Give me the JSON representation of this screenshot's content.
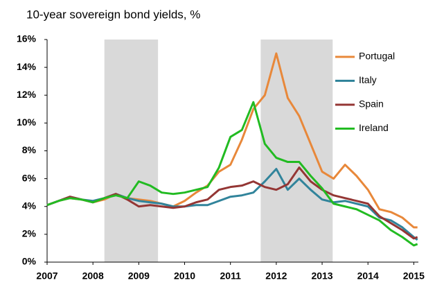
{
  "chart_data": {
    "type": "line",
    "title": "10-year sovereign bond yields, %",
    "x": [
      2007,
      2007.25,
      2007.5,
      2007.75,
      2008,
      2008.25,
      2008.5,
      2008.75,
      2009,
      2009.25,
      2009.5,
      2009.75,
      2010,
      2010.25,
      2010.5,
      2010.75,
      2011,
      2011.25,
      2011.5,
      2011.75,
      2012,
      2012.25,
      2012.5,
      2012.75,
      2013,
      2013.25,
      2013.5,
      2013.75,
      2014,
      2014.25,
      2014.5,
      2014.75,
      2015,
      2015.08
    ],
    "series": [
      {
        "name": "Portugal",
        "color": "#e8883a",
        "values": [
          4.1,
          4.4,
          4.6,
          4.5,
          4.3,
          4.5,
          4.9,
          4.6,
          4.5,
          4.4,
          4.2,
          4.0,
          4.4,
          5.0,
          5.5,
          6.5,
          7.0,
          8.8,
          11.0,
          12.0,
          15,
          11.8,
          10.5,
          8.5,
          6.5,
          6.0,
          7.0,
          6.2,
          5.2,
          3.8,
          3.6,
          3.2,
          2.5,
          2.5
        ]
      },
      {
        "name": "Italy",
        "color": "#31849b",
        "values": [
          4.1,
          4.4,
          4.7,
          4.5,
          4.4,
          4.6,
          4.9,
          4.6,
          4.4,
          4.3,
          4.2,
          4.0,
          4.0,
          4.1,
          4.1,
          4.4,
          4.7,
          4.8,
          5.0,
          5.8,
          6.7,
          5.2,
          6.0,
          5.2,
          4.5,
          4.3,
          4.4,
          4.2,
          4.0,
          3.2,
          3.0,
          2.5,
          1.8,
          1.6
        ]
      },
      {
        "name": "Spain",
        "color": "#943634",
        "values": [
          4.1,
          4.4,
          4.7,
          4.5,
          4.3,
          4.6,
          4.9,
          4.5,
          4.0,
          4.1,
          4.0,
          3.9,
          4.0,
          4.3,
          4.5,
          5.2,
          5.4,
          5.5,
          5.8,
          5.4,
          5.2,
          5.6,
          6.8,
          5.8,
          5.2,
          4.8,
          4.6,
          4.4,
          4.2,
          3.3,
          2.8,
          2.3,
          1.7,
          1.8
        ]
      },
      {
        "name": "Ireland",
        "color": "#22bb22",
        "values": [
          4.1,
          4.4,
          4.6,
          4.5,
          4.3,
          4.6,
          4.8,
          4.6,
          5.8,
          5.5,
          5.0,
          4.9,
          5.0,
          5.2,
          5.4,
          6.8,
          9.0,
          9.5,
          11.5,
          8.5,
          7.5,
          7.2,
          7.2,
          6.2,
          5.3,
          4.2,
          4.0,
          3.8,
          3.4,
          3.0,
          2.3,
          1.8,
          1.2,
          1.3
        ]
      }
    ],
    "shaded_regions": [
      [
        2008.25,
        2009.42
      ],
      [
        2011.66,
        2013.23
      ]
    ],
    "shade_color": "#d9d9d9",
    "xlim": [
      2007,
      2015.1
    ],
    "xticks": [
      2007,
      2008,
      2009,
      2010,
      2011,
      2012,
      2013,
      2014,
      2015
    ],
    "ylim": [
      0,
      16
    ],
    "yticks": [
      {
        "value": 0,
        "label": "0%"
      },
      {
        "value": 2,
        "label": "2%"
      },
      {
        "value": 4,
        "label": "4%"
      },
      {
        "value": 6,
        "label": "6%"
      },
      {
        "value": 8,
        "label": "8%"
      },
      {
        "value": 10,
        "label": "10%"
      },
      {
        "value": 12,
        "label": "12%"
      },
      {
        "value": 14,
        "label": "14%"
      },
      {
        "value": 16,
        "label": "16%"
      }
    ],
    "legend": "upper right",
    "grid": false
  }
}
